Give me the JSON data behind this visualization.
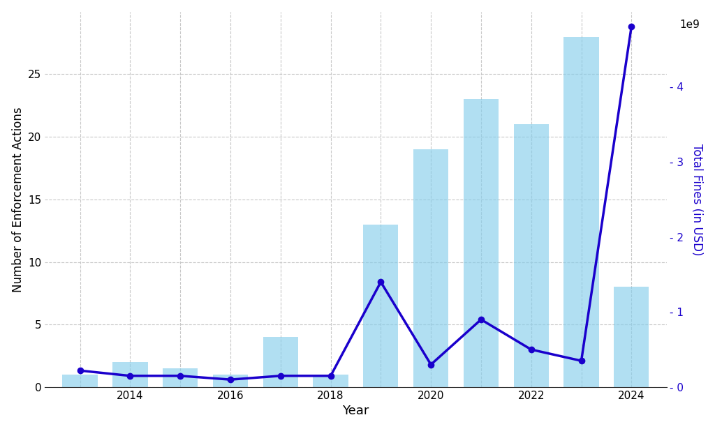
{
  "years": [
    2013,
    2014,
    2015,
    2016,
    2017,
    2018,
    2019,
    2020,
    2021,
    2022,
    2023,
    2024
  ],
  "enforcement_actions": [
    1,
    2,
    1.5,
    1,
    4,
    1,
    13,
    19,
    23,
    21,
    28,
    8
  ],
  "total_fines": [
    220000000,
    150000000,
    150000000,
    100000000,
    150000000,
    150000000,
    1400000000,
    300000000,
    900000000,
    500000000,
    350000000,
    4800000000
  ],
  "bar_color": "#87CEEB",
  "line_color": "#1a00cc",
  "left_ylabel": "Number of Enforcement Actions",
  "right_ylabel": "Total Fines (in USD)",
  "xlabel": "Year",
  "background_color": "#ffffff",
  "ylim_left": [
    0,
    30
  ],
  "ylim_right": [
    0,
    5000000000
  ],
  "grid_color": "#c8c8c8",
  "bar_alpha": 0.65,
  "right_yticks": [
    0,
    1000000000,
    2000000000,
    3000000000,
    4000000000
  ],
  "right_yticklabels": [
    "- 0",
    "- 1",
    "- 2",
    "- 3",
    "- 4"
  ]
}
